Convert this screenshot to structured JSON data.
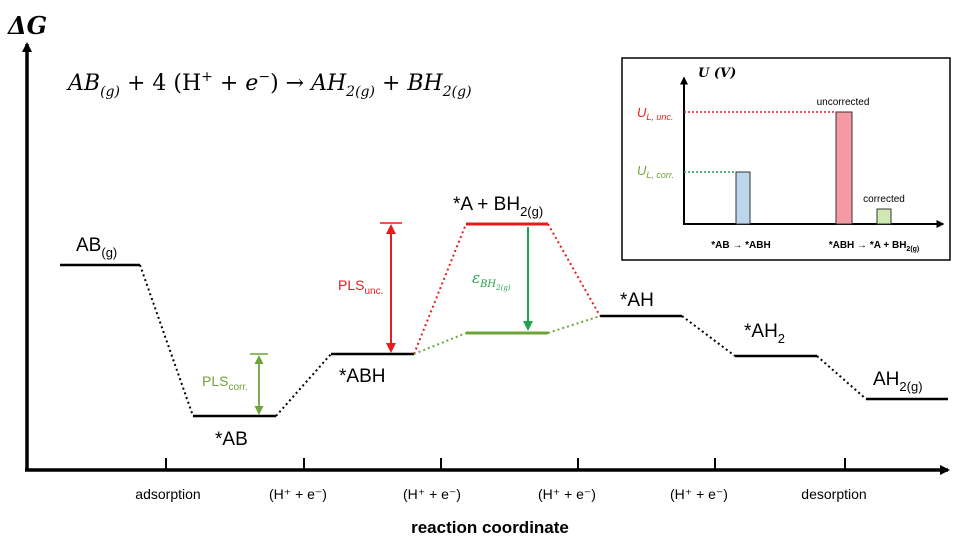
{
  "y_axis_label": "ΔG",
  "x_axis_label": "reaction coordinate",
  "reaction": {
    "reactant": "AB",
    "reactant_sub": "(g)",
    "middle": " + 4 (H",
    "sup_plus": "+",
    "plus_e": " + e",
    "sup_minus": "−",
    "arrow_part": ") → ",
    "prod1": "AH",
    "prod1_sub": "2(g)",
    "plus": " + ",
    "prod2": "BH",
    "prod2_sub": "2(g)"
  },
  "x_ticks": [
    "adsorption",
    "(H⁺ + e⁻)",
    "(H⁺ + e⁻)",
    "(H⁺ + e⁻)",
    "(H⁺ + e⁻)",
    "desorption"
  ],
  "levels": {
    "ab_g": {
      "main": "AB",
      "sub": "(g)"
    },
    "star_ab": "*AB",
    "star_abh": "*ABH",
    "star_a_bh2": {
      "main": "*A + BH",
      "sub": "2(g)"
    },
    "star_ah": "*AH",
    "star_ah2": {
      "main": "*AH",
      "sub": "2"
    },
    "ah2_g": {
      "main": "AH",
      "sub": "2(g)"
    }
  },
  "pls_corr": {
    "main": "PLS",
    "sub": "corr."
  },
  "pls_unc": {
    "main": "PLS",
    "sub": "unc."
  },
  "epsilon": {
    "main": "ε",
    "sub": "BH",
    "subsub": "2(g)"
  },
  "inset": {
    "y_label": "U (V)",
    "ul_unc": {
      "main": "U",
      "sub": "L, unc."
    },
    "ul_corr": {
      "main": "U",
      "sub": "L, corr."
    },
    "uncorrected": "uncorrected",
    "corrected": "corrected",
    "cat1": "*AB → *ABH",
    "cat2": {
      "main": "*ABH → *A + BH",
      "sub": "2(g)"
    }
  },
  "colors": {
    "red": "#e41e1e",
    "green": "#6ea33a",
    "green_arrow": "#22a24a",
    "black": "#000000",
    "blue_bar": "#bcd6ee",
    "red_bar": "#f59aa4",
    "green_bar": "#cfe8b4"
  }
}
